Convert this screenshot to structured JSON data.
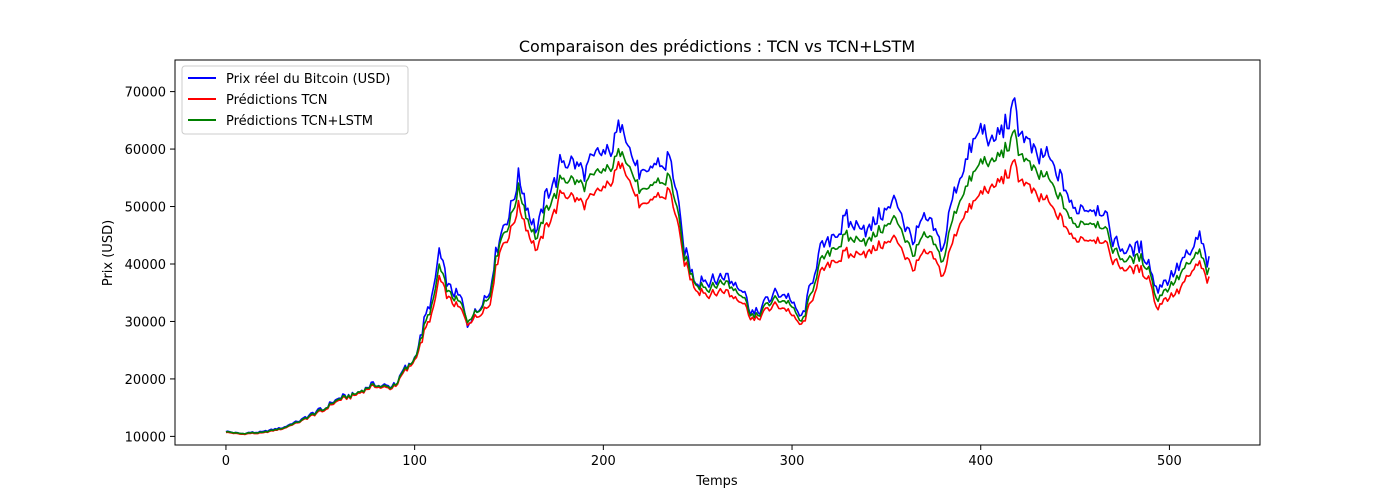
{
  "chart_data": {
    "type": "line",
    "title": "Comparaison des prédictions : TCN vs TCN+LSTM",
    "xlabel": "Temps",
    "ylabel": "Prix (USD)",
    "xlim": [
      -27,
      548
    ],
    "ylim": [
      8500,
      75500
    ],
    "x_ticks": [
      0,
      100,
      200,
      300,
      400,
      500
    ],
    "y_ticks": [
      10000,
      20000,
      30000,
      40000,
      50000,
      60000,
      70000
    ],
    "grid": false,
    "legend_position": "top-left",
    "x_count": 522,
    "series": [
      {
        "name": "Prix réel du Bitcoin (USD)",
        "color": "#0000ff",
        "noise": 0.045,
        "keypoints": [
          [
            0,
            11000
          ],
          [
            8,
            10500
          ],
          [
            20,
            10800
          ],
          [
            30,
            11500
          ],
          [
            40,
            12800
          ],
          [
            50,
            14500
          ],
          [
            60,
            16500
          ],
          [
            70,
            18000
          ],
          [
            80,
            19000
          ],
          [
            88,
            18500
          ],
          [
            95,
            22000
          ],
          [
            100,
            24000
          ],
          [
            105,
            30000
          ],
          [
            110,
            35000
          ],
          [
            113,
            42000
          ],
          [
            118,
            36000
          ],
          [
            125,
            34000
          ],
          [
            128,
            30000
          ],
          [
            135,
            33000
          ],
          [
            140,
            36000
          ],
          [
            145,
            45000
          ],
          [
            150,
            48000
          ],
          [
            155,
            55000
          ],
          [
            160,
            50000
          ],
          [
            165,
            46000
          ],
          [
            170,
            52000
          ],
          [
            178,
            58000
          ],
          [
            185,
            56000
          ],
          [
            195,
            58000
          ],
          [
            205,
            60000
          ],
          [
            210,
            65000
          ],
          [
            215,
            58000
          ],
          [
            220,
            54000
          ],
          [
            228,
            57000
          ],
          [
            235,
            59000
          ],
          [
            240,
            50000
          ],
          [
            243,
            42000
          ],
          [
            248,
            38000
          ],
          [
            255,
            36000
          ],
          [
            262,
            38000
          ],
          [
            268,
            37000
          ],
          [
            275,
            35000
          ],
          [
            280,
            31000
          ],
          [
            290,
            35000
          ],
          [
            300,
            34000
          ],
          [
            305,
            31000
          ],
          [
            310,
            36000
          ],
          [
            315,
            42000
          ],
          [
            320,
            44000
          ],
          [
            330,
            48000
          ],
          [
            340,
            46000
          ],
          [
            350,
            50000
          ],
          [
            355,
            52000
          ],
          [
            360,
            46000
          ],
          [
            365,
            44000
          ],
          [
            370,
            48000
          ],
          [
            375,
            46000
          ],
          [
            380,
            42000
          ],
          [
            385,
            52000
          ],
          [
            390,
            56000
          ],
          [
            395,
            62000
          ],
          [
            400,
            64000
          ],
          [
            405,
            61000
          ],
          [
            410,
            63000
          ],
          [
            418,
            66000
          ],
          [
            425,
            61000
          ],
          [
            430,
            60000
          ],
          [
            438,
            57000
          ],
          [
            445,
            52000
          ],
          [
            450,
            49000
          ],
          [
            458,
            50000
          ],
          [
            465,
            49000
          ],
          [
            470,
            44000
          ],
          [
            475,
            42000
          ],
          [
            485,
            42000
          ],
          [
            490,
            40000
          ],
          [
            493,
            36000
          ],
          [
            498,
            37000
          ],
          [
            505,
            40000
          ],
          [
            512,
            42000
          ],
          [
            516,
            44000
          ],
          [
            520,
            40000
          ]
        ]
      },
      {
        "name": "Prédictions TCN",
        "color": "#ff0000",
        "noise": 0.03,
        "keypoints": [
          [
            0,
            10800
          ],
          [
            8,
            10400
          ],
          [
            20,
            10600
          ],
          [
            30,
            11300
          ],
          [
            40,
            12600
          ],
          [
            50,
            14200
          ],
          [
            60,
            16200
          ],
          [
            70,
            17700
          ],
          [
            80,
            18700
          ],
          [
            88,
            18200
          ],
          [
            95,
            21500
          ],
          [
            100,
            23500
          ],
          [
            105,
            28000
          ],
          [
            110,
            32000
          ],
          [
            113,
            37500
          ],
          [
            118,
            34000
          ],
          [
            125,
            32000
          ],
          [
            128,
            30000
          ],
          [
            135,
            31500
          ],
          [
            140,
            33500
          ],
          [
            145,
            42500
          ],
          [
            150,
            44500
          ],
          [
            155,
            50000
          ],
          [
            160,
            46000
          ],
          [
            165,
            42500
          ],
          [
            170,
            46500
          ],
          [
            178,
            52500
          ],
          [
            185,
            50500
          ],
          [
            195,
            51500
          ],
          [
            205,
            54500
          ],
          [
            210,
            58000
          ],
          [
            215,
            53000
          ],
          [
            220,
            49000
          ],
          [
            228,
            51500
          ],
          [
            235,
            53000
          ],
          [
            240,
            46000
          ],
          [
            243,
            40000
          ],
          [
            248,
            36500
          ],
          [
            255,
            34000
          ],
          [
            262,
            35500
          ],
          [
            268,
            34500
          ],
          [
            275,
            33000
          ],
          [
            280,
            30000
          ],
          [
            290,
            33000
          ],
          [
            300,
            31500
          ],
          [
            305,
            29500
          ],
          [
            310,
            33000
          ],
          [
            315,
            38000
          ],
          [
            320,
            40000
          ],
          [
            330,
            42000
          ],
          [
            340,
            42000
          ],
          [
            350,
            44000
          ],
          [
            355,
            45000
          ],
          [
            360,
            41000
          ],
          [
            365,
            39000
          ],
          [
            370,
            42000
          ],
          [
            375,
            41000
          ],
          [
            380,
            37500
          ],
          [
            385,
            44000
          ],
          [
            390,
            48000
          ],
          [
            395,
            51000
          ],
          [
            400,
            52500
          ],
          [
            405,
            53000
          ],
          [
            410,
            54500
          ],
          [
            418,
            56500
          ],
          [
            425,
            53500
          ],
          [
            430,
            52500
          ],
          [
            438,
            49500
          ],
          [
            445,
            46000
          ],
          [
            450,
            44000
          ],
          [
            458,
            44500
          ],
          [
            465,
            44000
          ],
          [
            470,
            40500
          ],
          [
            475,
            39000
          ],
          [
            485,
            38500
          ],
          [
            490,
            37500
          ],
          [
            493,
            32500
          ],
          [
            498,
            34000
          ],
          [
            505,
            35500
          ],
          [
            512,
            38500
          ],
          [
            516,
            39500
          ],
          [
            520,
            37000
          ]
        ]
      },
      {
        "name": "Prédictions TCN+LSTM",
        "color": "#008000",
        "noise": 0.03,
        "keypoints": [
          [
            0,
            10900
          ],
          [
            8,
            10500
          ],
          [
            20,
            10700
          ],
          [
            30,
            11400
          ],
          [
            40,
            12700
          ],
          [
            50,
            14400
          ],
          [
            60,
            16400
          ],
          [
            70,
            17900
          ],
          [
            80,
            18900
          ],
          [
            88,
            18400
          ],
          [
            95,
            21800
          ],
          [
            100,
            23800
          ],
          [
            105,
            29000
          ],
          [
            110,
            33500
          ],
          [
            113,
            39500
          ],
          [
            118,
            35000
          ],
          [
            125,
            33000
          ],
          [
            128,
            30500
          ],
          [
            135,
            32500
          ],
          [
            140,
            35000
          ],
          [
            145,
            44000
          ],
          [
            150,
            46500
          ],
          [
            155,
            53000
          ],
          [
            160,
            48000
          ],
          [
            165,
            44500
          ],
          [
            170,
            49500
          ],
          [
            178,
            55000
          ],
          [
            185,
            53500
          ],
          [
            195,
            55000
          ],
          [
            205,
            57000
          ],
          [
            210,
            60000
          ],
          [
            215,
            55500
          ],
          [
            220,
            51500
          ],
          [
            228,
            54000
          ],
          [
            235,
            55500
          ],
          [
            240,
            48000
          ],
          [
            243,
            41000
          ],
          [
            248,
            37500
          ],
          [
            255,
            35000
          ],
          [
            262,
            37000
          ],
          [
            268,
            36000
          ],
          [
            275,
            34000
          ],
          [
            280,
            30500
          ],
          [
            290,
            34000
          ],
          [
            300,
            33000
          ],
          [
            305,
            30000
          ],
          [
            310,
            34500
          ],
          [
            315,
            40000
          ],
          [
            320,
            42000
          ],
          [
            330,
            45000
          ],
          [
            340,
            44000
          ],
          [
            350,
            47000
          ],
          [
            355,
            48500
          ],
          [
            360,
            44000
          ],
          [
            365,
            41500
          ],
          [
            370,
            45000
          ],
          [
            375,
            43500
          ],
          [
            380,
            40000
          ],
          [
            385,
            48000
          ],
          [
            390,
            52000
          ],
          [
            395,
            56000
          ],
          [
            400,
            58000
          ],
          [
            405,
            57500
          ],
          [
            410,
            59000
          ],
          [
            418,
            61500
          ],
          [
            425,
            57500
          ],
          [
            430,
            56500
          ],
          [
            438,
            53500
          ],
          [
            445,
            49000
          ],
          [
            450,
            46500
          ],
          [
            458,
            47500
          ],
          [
            465,
            46500
          ],
          [
            470,
            42500
          ],
          [
            475,
            40500
          ],
          [
            485,
            40500
          ],
          [
            490,
            39000
          ],
          [
            493,
            34000
          ],
          [
            498,
            35500
          ],
          [
            505,
            38000
          ],
          [
            512,
            40500
          ],
          [
            516,
            41500
          ],
          [
            520,
            38500
          ]
        ]
      }
    ]
  }
}
